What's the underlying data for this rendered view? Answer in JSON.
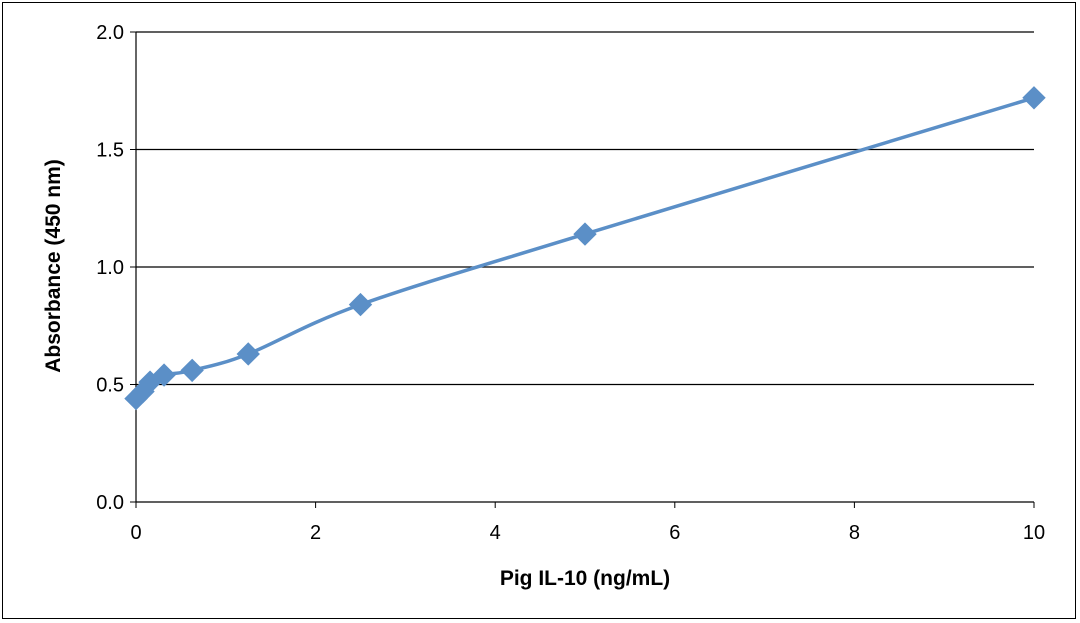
{
  "chart_data": {
    "type": "line",
    "title": "",
    "xlabel": "Pig IL-10 (ng/mL)",
    "ylabel": "Absorbance  (450  nm)",
    "xlim": [
      0,
      10
    ],
    "ylim": [
      0,
      2.0
    ],
    "xticks": [
      0,
      2,
      4,
      6,
      8,
      10
    ],
    "yticks": [
      0.0,
      0.5,
      1.0,
      1.5,
      2.0
    ],
    "xtick_labels": [
      "0",
      "2",
      "4",
      "6",
      "8",
      "10"
    ],
    "ytick_labels": [
      "0.0",
      "0.5",
      "1.0",
      "1.5",
      "2.0"
    ],
    "grid": "horizontal major gridlines",
    "legend": "none",
    "series": [
      {
        "color": "#5B8FC7",
        "marker": "diamond",
        "x": [
          0,
          0.078,
          0.156,
          0.3125,
          0.625,
          1.25,
          2.5,
          5,
          10
        ],
        "y": [
          0.44,
          0.47,
          0.51,
          0.54,
          0.56,
          0.63,
          0.84,
          1.14,
          1.72
        ]
      }
    ]
  }
}
